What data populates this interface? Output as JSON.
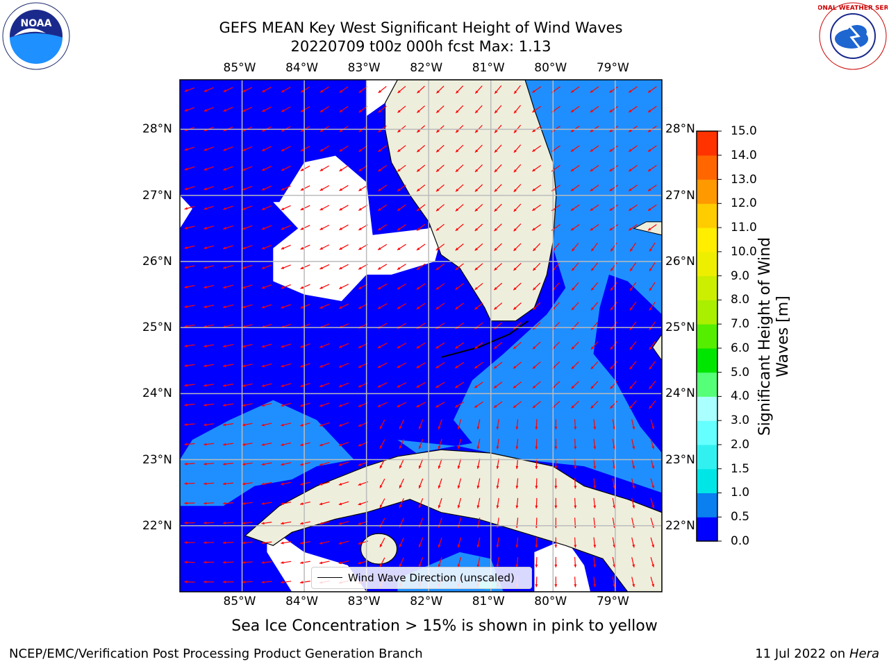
{
  "title": {
    "line1": "GEFS MEAN Key West Significant Height of Wind Waves",
    "line2": "20220709 t00z 000h fcst   Max: 1.13"
  },
  "logos": {
    "left": {
      "icon": "noaa-logo-icon",
      "text": "NOAA"
    },
    "right": {
      "icon": "nws-logo-icon",
      "text": "NATIONAL WEATHER SERVICE"
    }
  },
  "map": {
    "lon_ticks": [
      "85°W",
      "84°W",
      "83°W",
      "82°W",
      "81°W",
      "80°W",
      "79°W"
    ],
    "lat_ticks": [
      "28°N",
      "27°N",
      "26°N",
      "25°N",
      "24°N",
      "23°N",
      "22°N"
    ],
    "lon_range": [
      -86.0,
      -78.25
    ],
    "lat_range": [
      21.0,
      28.75
    ],
    "legend": "Wind Wave Direction (unscaled)"
  },
  "colorbar": {
    "label": "Significant Height of Wind Waves [m]",
    "ticks": [
      "0.0",
      "0.5",
      "1.0",
      "1.5",
      "2.0",
      "3.0",
      "4.0",
      "5.0",
      "6.0",
      "7.0",
      "8.0",
      "9.0",
      "10.0",
      "11.0",
      "12.0",
      "13.0",
      "14.0",
      "15.0"
    ],
    "colors": [
      "#0000ff",
      "#0a7ff0",
      "#00e6e6",
      "#33f0f0",
      "#66ffff",
      "#aaffff",
      "#55ff77",
      "#00e600",
      "#55ee00",
      "#aaee00",
      "#ccee00",
      "#eeee00",
      "#ffee00",
      "#ffcc00",
      "#ff9900",
      "#ff6600",
      "#ff3300",
      "#ff0000"
    ]
  },
  "colors": {
    "low_band": "#0000ff",
    "mid_band": "#1f8fff",
    "land": "#eeeedd",
    "arrow": "#ff0000",
    "grid": "#bbbbbb"
  },
  "caption": "Sea Ice Concentration > 15% is shown in pink to yellow",
  "footer": {
    "left": "NCEP/EMC/Verification Post Processing Product Generation Branch",
    "right_date": "11 Jul 2022 on ",
    "right_host": "Hera"
  }
}
